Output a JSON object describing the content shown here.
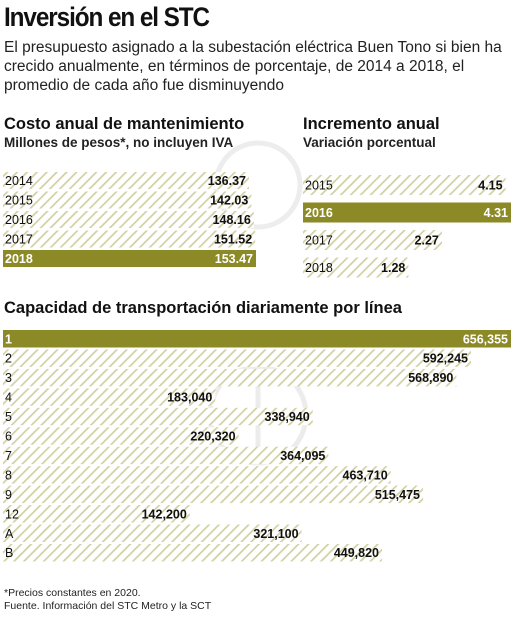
{
  "title": "Inversión en el STC",
  "intro": "El presupuesto asignado a la subestación eléctrica Buen Tono si bien ha crecido anualmente, en términos de porcentaje, de 2014 a 2018, el promedio de cada año fue disminuyendo",
  "colors": {
    "olive": "#8c8a26",
    "hatch": "#d2d0a2",
    "text": "#111111",
    "label_highlight": "#ffffff"
  },
  "panels": {
    "costo": {
      "title": "Costo anual de mantenimiento",
      "subtitle": "Millones de pesos*, no incluyen IVA"
    },
    "incremento": {
      "title": "Incremento anual",
      "subtitle": "Variación porcentual"
    },
    "capacidad": {
      "title": "Capacidad de transportación diariamente por línea"
    }
  },
  "chart_data": [
    {
      "type": "bar",
      "orientation": "horizontal",
      "title": "Costo anual de mantenimiento",
      "subtitle": "Millones de pesos*, no incluyen IVA",
      "categories": [
        "2014",
        "2015",
        "2016",
        "2017",
        "2018"
      ],
      "values": [
        136.37,
        142.03,
        148.16,
        151.52,
        153.47
      ],
      "labels": [
        "136.37",
        "142.03",
        "148.16",
        "151.52",
        "153.47"
      ],
      "highlight": "2018",
      "xlim": [
        0,
        153.47
      ]
    },
    {
      "type": "bar",
      "orientation": "horizontal",
      "title": "Incremento anual",
      "subtitle": "Variación porcentual",
      "categories": [
        "2015",
        "2016",
        "2017",
        "2018"
      ],
      "values": [
        4.15,
        4.31,
        2.27,
        1.28
      ],
      "labels": [
        "4.15",
        "4.31",
        "2.27",
        "1.28"
      ],
      "highlight": "2016",
      "xlim": [
        0,
        4.31
      ]
    },
    {
      "type": "bar",
      "orientation": "horizontal",
      "title": "Capacidad de transportación diariamente por línea",
      "categories": [
        "1",
        "2",
        "3",
        "4",
        "5",
        "6",
        "7",
        "8",
        "9",
        "12",
        "A",
        "B"
      ],
      "values": [
        656355,
        592245,
        568890,
        183040,
        338940,
        220320,
        364095,
        463710,
        515475,
        142200,
        321100,
        449820
      ],
      "labels": [
        "656,355",
        "592,245",
        "568,890",
        "183,040",
        "338,940",
        "220,320",
        "364,095",
        "463,710",
        "515,475",
        "142,200",
        "321,100",
        "449,820"
      ],
      "highlight": "1",
      "xlim": [
        0,
        656355
      ]
    }
  ],
  "footnote": {
    "line1": "*Precios constantes en 2020.",
    "line2": "Fuente. Información del STC Metro y la SCT"
  }
}
